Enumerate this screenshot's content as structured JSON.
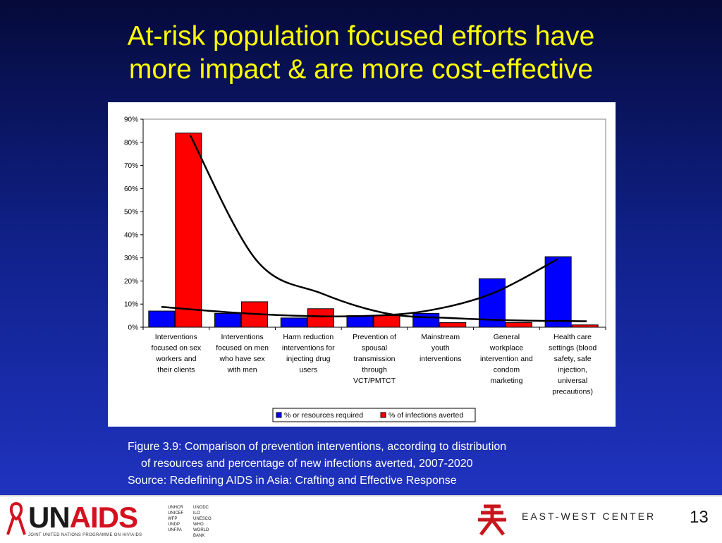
{
  "slide": {
    "title_line1": "At-risk population focused efforts have",
    "title_line2": "more impact & are more cost-effective",
    "caption_line1": "Figure 3.9: Comparison of prevention interventions, according to distribution",
    "caption_line2": "of resources and percentage of new infections averted, 2007-2020",
    "caption_line3": "Source: Redefining AIDS in Asia: Crafting and Effective Response",
    "page_number": "13"
  },
  "footer": {
    "unaids_un": "UN",
    "unaids_aids": "AIDS",
    "unaids_tagline": "JOINT UNITED NATIONS PROGRAMME ON HIV/AIDS",
    "cosponsors": [
      "UNHCR",
      "UNODC",
      "UNICEF",
      "ILO",
      "WFP",
      "UNESCO",
      "UNDP",
      "WHO",
      "UNFPA",
      "WORLD BANK"
    ],
    "ewc_text": "EAST-WEST CENTER"
  },
  "colors": {
    "title": "#ffff00",
    "series_resources": "#0000ff",
    "series_infections": "#ff0000",
    "trend": "#000000"
  },
  "chart_data": {
    "type": "bar",
    "categories": [
      [
        "Interventions",
        "focused on sex",
        "workers and",
        "their clients"
      ],
      [
        "Interventions",
        "focused on men",
        "who have sex",
        "with men"
      ],
      [
        "Harm reduction",
        "interventions for",
        "injecting drug",
        "users"
      ],
      [
        "Prevention of",
        "spousal",
        "transmission",
        "through",
        "VCT/PMTCT"
      ],
      [
        "Mainstream",
        "youth",
        "interventions"
      ],
      [
        "General",
        "workplace",
        "intervention and",
        "condom",
        "marketing"
      ],
      [
        "Health care",
        "settings (blood",
        "safety, safe",
        "injection,",
        "universal",
        "precautions)"
      ]
    ],
    "series": [
      {
        "name": "% or resources required",
        "values": [
          7,
          6,
          4,
          5,
          6,
          21,
          30.5
        ]
      },
      {
        "name": "% of infections averted",
        "values": [
          84,
          11,
          8,
          5,
          2,
          2,
          1
        ]
      }
    ],
    "trendlines": [
      {
        "series": "% or resources required",
        "shape": "exponential rising",
        "x": [
          1,
          2,
          3,
          4,
          5,
          6,
          7
        ],
        "y": [
          8.8,
          6.5,
          5.0,
          4.8,
          7.0,
          14.5,
          29.5
        ]
      },
      {
        "series": "% of infections averted",
        "shape": "power declining",
        "x": [
          1,
          2,
          3,
          4,
          5,
          6,
          7
        ],
        "y": [
          83,
          29,
          14.5,
          5.8,
          3.9,
          2.9,
          2.6
        ]
      }
    ],
    "yticks": [
      "0%",
      "10%",
      "20%",
      "30%",
      "40%",
      "50%",
      "60%",
      "70%",
      "80%",
      "90%"
    ],
    "ylim": [
      0,
      90
    ],
    "legend_position": "bottom",
    "grid": false
  }
}
